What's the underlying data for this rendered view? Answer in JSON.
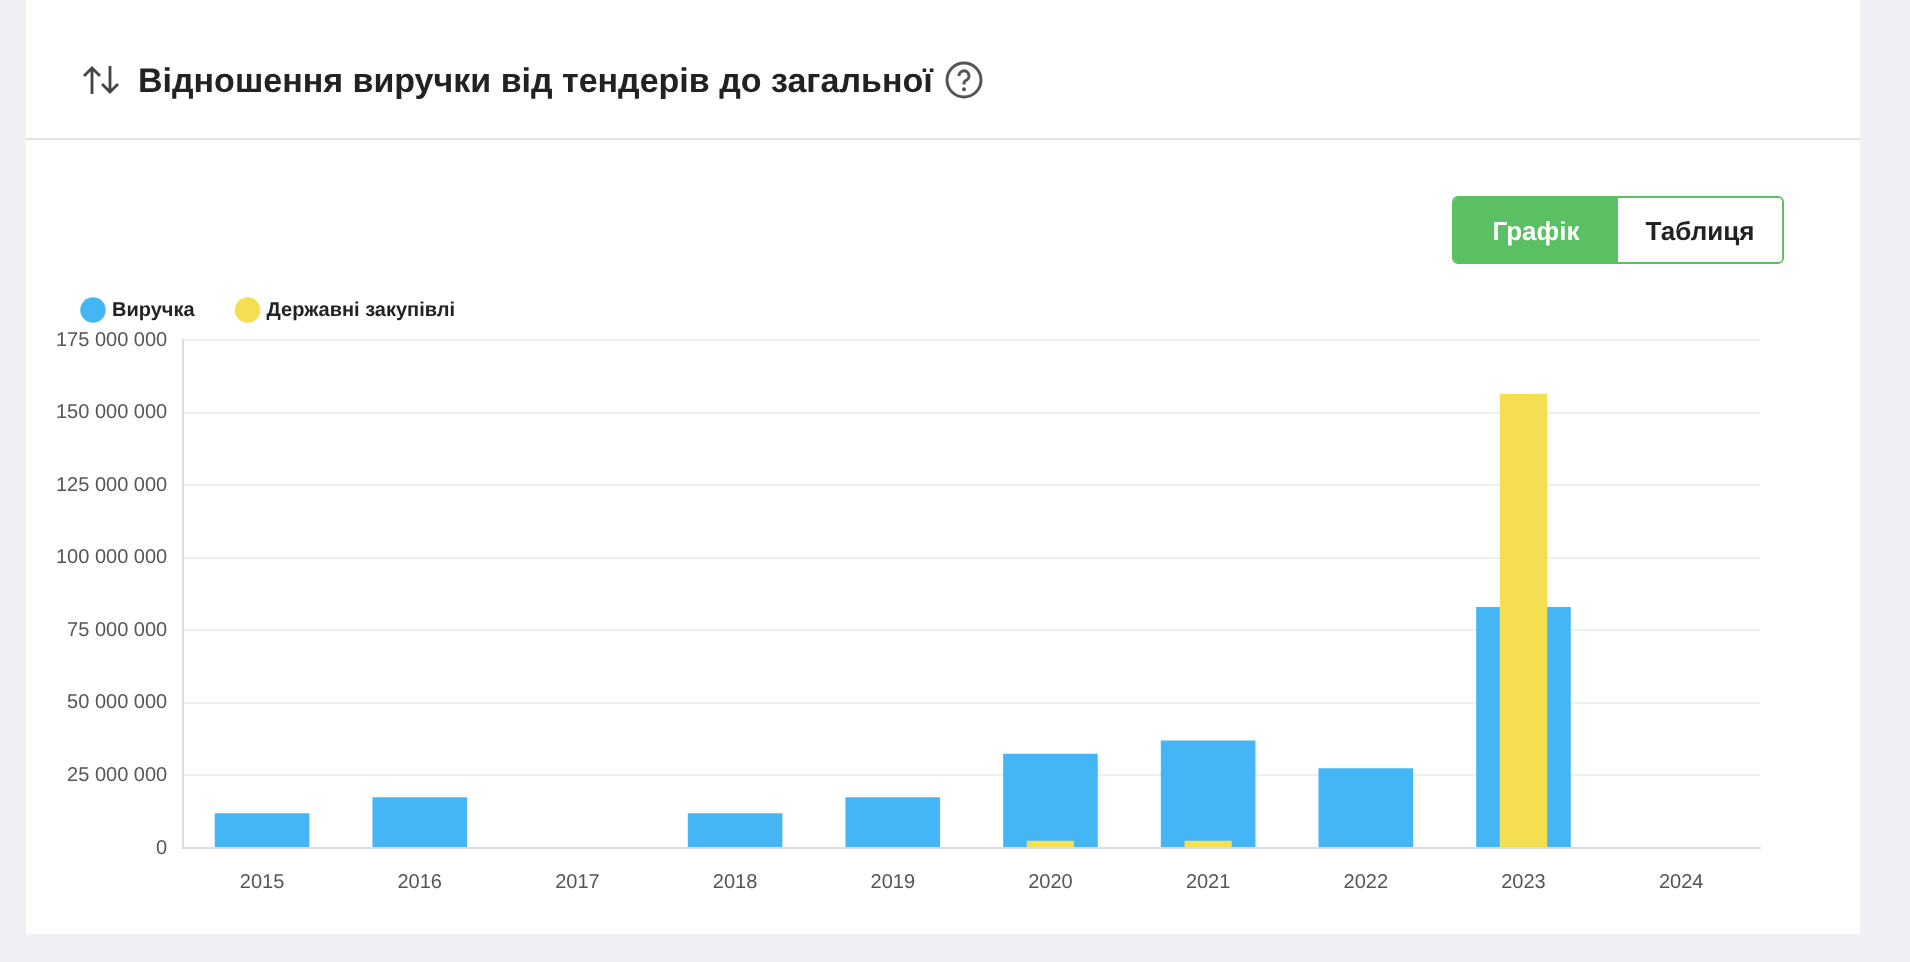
{
  "chart_data": {
    "type": "bar",
    "title": "Відношення виручки від тендерів до загальної",
    "categories": [
      "2015",
      "2016",
      "2017",
      "2018",
      "2019",
      "2020",
      "2021",
      "2022",
      "2023",
      "2024"
    ],
    "series": [
      {
        "name": "Виручка",
        "color": "#45b6f5",
        "values": [
          12000000,
          17500000,
          null,
          12000000,
          17500000,
          32500000,
          37000000,
          27500000,
          83000000,
          null
        ]
      },
      {
        "name": "Державні закупівлі",
        "color": "#f5df50",
        "values": [
          null,
          null,
          null,
          null,
          null,
          2500000,
          2500000,
          null,
          156500000,
          null
        ]
      }
    ],
    "ylim": [
      0,
      175000000
    ],
    "yticks": [
      0,
      25000000,
      50000000,
      75000000,
      100000000,
      125000000,
      150000000,
      175000000
    ],
    "grid": "y",
    "legend": "top left",
    "annotations": [
      "Графік",
      "Таблиця"
    ]
  }
}
